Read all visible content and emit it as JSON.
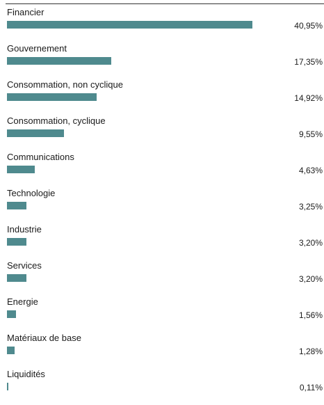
{
  "chart_data": {
    "type": "bar",
    "orientation": "horizontal",
    "categories": [
      "Financier",
      "Gouvernement",
      "Consommation, non cyclique",
      "Consommation, cyclique",
      "Communications",
      "Technologie",
      "Industrie",
      "Services",
      "Energie",
      "Matériaux de base",
      "Liquidités"
    ],
    "values": [
      40.95,
      17.35,
      14.92,
      9.55,
      4.63,
      3.25,
      3.2,
      3.2,
      1.56,
      1.28,
      0.11
    ],
    "value_labels": [
      "40,95%",
      "17,35%",
      "14,92%",
      "9,55%",
      "4,63%",
      "3,25%",
      "3,20%",
      "3,20%",
      "1,56%",
      "1,28%",
      "0,11%"
    ],
    "bar_color": "#4f8a8e",
    "title": "",
    "xlabel": "",
    "ylabel": "",
    "grid": false,
    "legend": "none"
  }
}
